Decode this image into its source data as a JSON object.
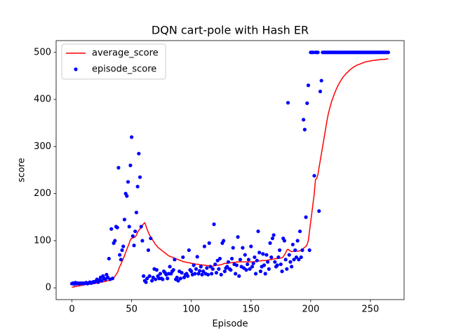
{
  "chart_data": {
    "type": "line",
    "title": "DQN cart-pole with Hash ER",
    "xlabel": "Episode",
    "ylabel": "score",
    "xlim": [
      -13.25,
      278.25
    ],
    "ylim": [
      -25,
      525
    ],
    "xticks": [
      0,
      50,
      100,
      150,
      200,
      250
    ],
    "yticks": [
      0,
      100,
      200,
      300,
      400,
      500
    ],
    "grid": false,
    "legend": "upper-left",
    "x": [
      0,
      1,
      2,
      3,
      4,
      5,
      6,
      7,
      8,
      9,
      10,
      11,
      12,
      13,
      14,
      15,
      16,
      17,
      18,
      19,
      20,
      21,
      22,
      23,
      24,
      25,
      26,
      27,
      28,
      29,
      30,
      31,
      32,
      33,
      34,
      35,
      36,
      37,
      38,
      39,
      40,
      41,
      42,
      43,
      44,
      45,
      46,
      47,
      48,
      49,
      50,
      51,
      52,
      53,
      54,
      55,
      56,
      57,
      58,
      59,
      60,
      61,
      62,
      63,
      64,
      65,
      66,
      67,
      68,
      69,
      70,
      71,
      72,
      73,
      74,
      75,
      76,
      77,
      78,
      79,
      80,
      81,
      82,
      83,
      84,
      85,
      86,
      87,
      88,
      89,
      90,
      91,
      92,
      93,
      94,
      95,
      96,
      97,
      98,
      99,
      100,
      101,
      102,
      103,
      104,
      105,
      106,
      107,
      108,
      109,
      110,
      111,
      112,
      113,
      114,
      115,
      116,
      117,
      118,
      119,
      120,
      121,
      122,
      123,
      124,
      125,
      126,
      127,
      128,
      129,
      130,
      131,
      132,
      133,
      134,
      135,
      136,
      137,
      138,
      139,
      140,
      141,
      142,
      143,
      144,
      145,
      146,
      147,
      148,
      149,
      150,
      151,
      152,
      153,
      154,
      155,
      156,
      157,
      158,
      159,
      160,
      161,
      162,
      163,
      164,
      165,
      166,
      167,
      168,
      169,
      170,
      171,
      172,
      173,
      174,
      175,
      176,
      177,
      178,
      179,
      180,
      181,
      182,
      183,
      184,
      185,
      186,
      187,
      188,
      189,
      190,
      191,
      192,
      193,
      194,
      195,
      196,
      197,
      198,
      199,
      200,
      201,
      202,
      203,
      204,
      205,
      206,
      207,
      208,
      209,
      210,
      211,
      212,
      213,
      214,
      215,
      216,
      217,
      218,
      219,
      220,
      221,
      222,
      223,
      224,
      225,
      226,
      227,
      228,
      229,
      230,
      231,
      232,
      233,
      234,
      235,
      236,
      237,
      238,
      239,
      240,
      241,
      242,
      243,
      244,
      245,
      246,
      247,
      248,
      249,
      250,
      251,
      252,
      253,
      254,
      255,
      256,
      257,
      258,
      259,
      260,
      261,
      262,
      263,
      264,
      265
    ],
    "series": [
      {
        "name": "average_score",
        "kind": "line",
        "color": "#ff0000",
        "values": [
          1,
          2,
          2,
          3,
          3,
          4,
          4,
          5,
          5,
          6,
          6,
          7,
          7,
          7,
          8,
          8,
          8,
          9,
          9,
          9,
          10,
          10,
          11,
          11,
          12,
          12,
          13,
          13,
          14,
          14,
          15,
          16,
          17,
          19,
          20,
          22,
          24,
          28,
          32,
          38,
          45,
          50,
          56,
          62,
          68,
          75,
          82,
          88,
          95,
          102,
          105,
          106,
          107,
          108,
          112,
          118,
          122,
          125,
          128,
          132,
          136,
          138,
          132,
          124,
          118,
          112,
          108,
          104,
          100,
          96,
          92,
          89,
          86,
          84,
          82,
          80,
          78,
          76,
          74,
          72,
          70,
          68,
          67,
          66,
          65,
          64,
          63,
          62,
          61,
          60,
          59,
          58,
          57,
          56,
          55,
          55,
          54,
          54,
          53,
          53,
          52,
          52,
          51,
          51,
          50,
          50,
          50,
          49,
          49,
          49,
          48,
          48,
          48,
          47,
          47,
          47,
          47,
          46,
          46,
          47,
          47,
          48,
          48,
          48,
          49,
          49,
          50,
          51,
          52,
          52,
          52,
          53,
          53,
          53,
          54,
          54,
          54,
          54,
          55,
          55,
          55,
          55,
          55,
          55,
          55,
          55,
          55,
          55,
          55,
          55,
          55,
          55,
          55,
          56,
          56,
          56,
          57,
          57,
          57,
          58,
          58,
          58,
          58,
          58,
          59,
          59,
          60,
          60,
          61,
          61,
          62,
          62,
          62,
          63,
          63,
          63,
          64,
          66,
          70,
          74,
          80,
          82,
          80,
          78,
          77,
          77,
          78,
          78,
          78,
          78,
          78,
          79,
          80,
          82,
          84,
          86,
          88,
          92,
          100,
          120,
          140,
          160,
          180,
          200,
          230,
          232,
          240,
          255,
          270,
          285,
          300,
          315,
          330,
          345,
          360,
          372,
          382,
          391,
          399,
          406,
          413,
          419,
          425,
          430,
          435,
          439,
          443,
          447,
          450,
          453,
          456,
          458,
          461,
          463,
          465,
          467,
          469,
          470,
          472,
          473,
          474,
          475,
          476,
          477,
          478,
          479,
          480,
          480,
          481,
          481,
          482,
          482,
          483,
          483,
          483,
          484,
          484,
          484,
          485,
          485,
          485,
          485,
          485,
          486,
          486,
          486
        ]
      },
      {
        "name": "episode_score",
        "kind": "scatter",
        "color": "#0000ff",
        "values": [
          9,
          10,
          8,
          11,
          9,
          10,
          9,
          10,
          9,
          10,
          9,
          10,
          11,
          9,
          10,
          12,
          10,
          11,
          13,
          12,
          14,
          18,
          12,
          16,
          22,
          15,
          25,
          20,
          18,
          28,
          22,
          62,
          18,
          125,
          20,
          95,
          100,
          130,
          128,
          255,
          70,
          60,
          80,
          88,
          145,
          200,
          195,
          225,
          130,
          260,
          320,
          110,
          90,
          120,
          160,
          215,
          285,
          235,
          130,
          100,
          25,
          15,
          12,
          20,
          80,
          25,
          105,
          15,
          22,
          40,
          18,
          38,
          25,
          20,
          30,
          20,
          18,
          35,
          32,
          28,
          20,
          30,
          45,
          30,
          35,
          38,
          60,
          18,
          22,
          15,
          35,
          20,
          32,
          65,
          22,
          28,
          30,
          25,
          80,
          38,
          35,
          28,
          48,
          30,
          40,
          66,
          30,
          36,
          45,
          28,
          35,
          88,
          30,
          42,
          28,
          95,
          45,
          30,
          40,
          135,
          50,
          32,
          58,
          40,
          62,
          28,
          95,
          100,
          35,
          42,
          45,
          55,
          40,
          38,
          62,
          85,
          50,
          30,
          48,
          108,
          25,
          60,
          45,
          85,
          42,
          70,
          38,
          50,
          60,
          40,
          88,
          45,
          52,
          65,
          30,
          58,
          120,
          75,
          35,
          45,
          72,
          48,
          30,
          70,
          55,
          40,
          95,
          65,
          105,
          112,
          55,
          45,
          48,
          65,
          80,
          50,
          35,
          105,
          100,
          60,
          40,
          393,
          70,
          55,
          45,
          92,
          60,
          80,
          65,
          100,
          60,
          120,
          65,
          80,
          357,
          336,
          150,
          392,
          430,
          80,
          500,
          500,
          500,
          238,
          500,
          500,
          500,
          163,
          417,
          440,
          500,
          500,
          500,
          500,
          500,
          500,
          500,
          500,
          500,
          500,
          500,
          500,
          500,
          500,
          500,
          500,
          500,
          500,
          500,
          500,
          500,
          500,
          500,
          500,
          500,
          500,
          500,
          500,
          500,
          500,
          500,
          500,
          500,
          500,
          500,
          500,
          500,
          500,
          500,
          500,
          500,
          500,
          500,
          500,
          500,
          500,
          500,
          500,
          500,
          500,
          500,
          500,
          500,
          500,
          500,
          500
        ]
      }
    ]
  }
}
